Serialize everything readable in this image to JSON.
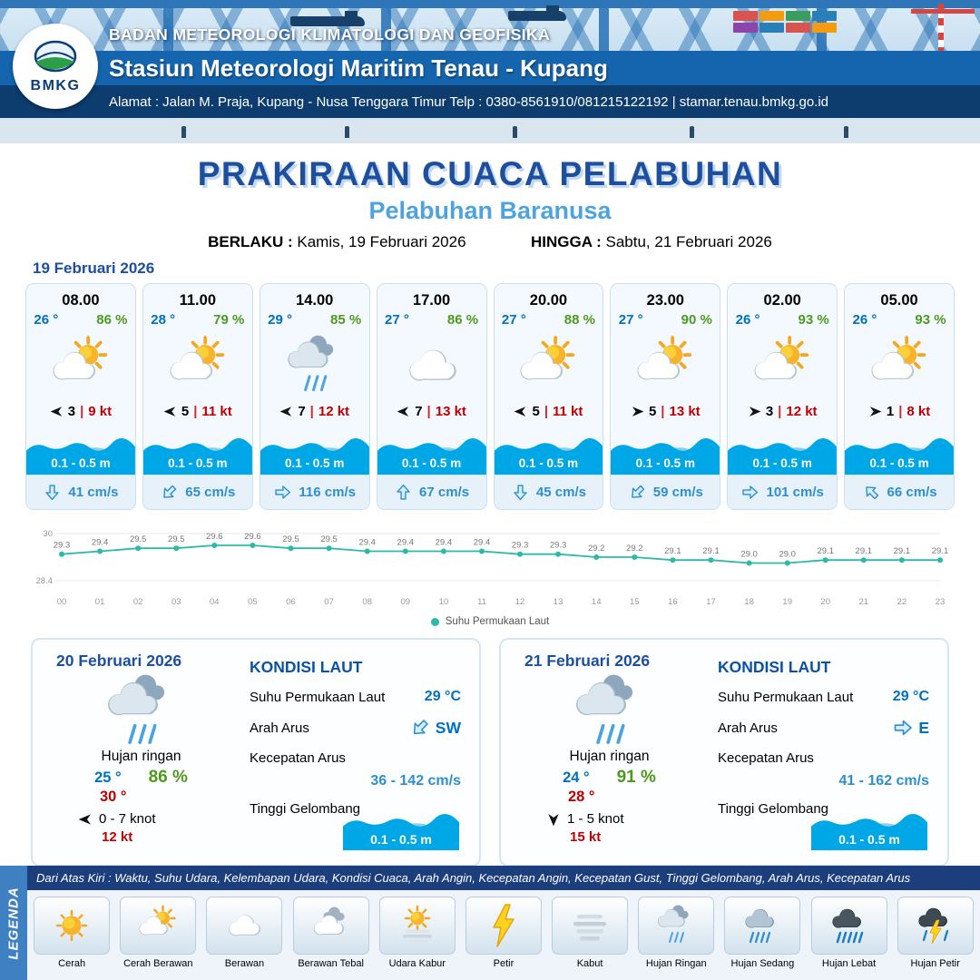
{
  "header": {
    "org_line": "BADAN METEOROLOGI KLIMATOLOGI DAN GEOFISIKA",
    "station_line": "Stasiun Meteorologi Maritim Tenau - Kupang",
    "address_line": "Alamat : Jalan M. Praja, Kupang - Nusa Tenggara Timur Telp : 0380-8561910/081215122192  | stamar.tenau.bmkg.go.id",
    "logo_text": "BMKG"
  },
  "title": {
    "main": "PRAKIRAAN CUACA PELABUHAN",
    "subtitle": "Pelabuhan Baranusa",
    "berlaku_label": "BERLAKU :",
    "berlaku_value": "Kamis, 19 Februari 2026",
    "hingga_label": "HINGGA :",
    "hingga_value": "Sabtu, 21 Februari 2026"
  },
  "day1": {
    "date": "19 Februari 2026",
    "cards": [
      {
        "time": "08.00",
        "temp": "26 °",
        "rh": "86 %",
        "icon": "cerah-berawan",
        "wind_speed": "3",
        "wind_kt": "9 kt",
        "wind_rot": 180,
        "wave": "0.1 - 0.5 m",
        "current": "41 cm/s",
        "current_rot": 90
      },
      {
        "time": "11.00",
        "temp": "28 °",
        "rh": "79 %",
        "icon": "cerah-berawan",
        "wind_speed": "5",
        "wind_kt": "11 kt",
        "wind_rot": 180,
        "wave": "0.1 - 0.5 m",
        "current": "65 cm/s",
        "current_rot": 135
      },
      {
        "time": "14.00",
        "temp": "29 °",
        "rh": "85 %",
        "icon": "hujan-ringan",
        "wind_speed": "7",
        "wind_kt": "12 kt",
        "wind_rot": 180,
        "wave": "0.1 - 0.5 m",
        "current": "116 cm/s",
        "current_rot": 0
      },
      {
        "time": "17.00",
        "temp": "27 °",
        "rh": "86 %",
        "icon": "berawan",
        "wind_speed": "7",
        "wind_kt": "13 kt",
        "wind_rot": 180,
        "wave": "0.1 - 0.5 m",
        "current": "67 cm/s",
        "current_rot": 270
      },
      {
        "time": "20.00",
        "temp": "27 °",
        "rh": "88 %",
        "icon": "cerah-berawan",
        "wind_speed": "5",
        "wind_kt": "11 kt",
        "wind_rot": 180,
        "wave": "0.1 - 0.5 m",
        "current": "45 cm/s",
        "current_rot": 90
      },
      {
        "time": "23.00",
        "temp": "27 °",
        "rh": "90 %",
        "icon": "cerah-berawan",
        "wind_speed": "5",
        "wind_kt": "13 kt",
        "wind_rot": 0,
        "wave": "0.1 - 0.5 m",
        "current": "59 cm/s",
        "current_rot": 135
      },
      {
        "time": "02.00",
        "temp": "26 °",
        "rh": "93 %",
        "icon": "cerah-berawan",
        "wind_speed": "3",
        "wind_kt": "12 kt",
        "wind_rot": 0,
        "wave": "0.1 - 0.5 m",
        "current": "101 cm/s",
        "current_rot": 0
      },
      {
        "time": "05.00",
        "temp": "26 °",
        "rh": "93 %",
        "icon": "cerah-berawan",
        "wind_speed": "1",
        "wind_kt": "8 kt",
        "wind_rot": 0,
        "wave": "0.1 - 0.5 m",
        "current": "66 cm/s",
        "current_rot": 225
      }
    ]
  },
  "chart_data": {
    "type": "line",
    "legend": "Suhu Permukaan Laut",
    "x": [
      "00",
      "01",
      "02",
      "03",
      "04",
      "05",
      "06",
      "07",
      "08",
      "09",
      "10",
      "11",
      "12",
      "13",
      "14",
      "15",
      "16",
      "17",
      "18",
      "19",
      "20",
      "21",
      "22",
      "23"
    ],
    "values": [
      29.3,
      29.4,
      29.5,
      29.5,
      29.6,
      29.6,
      29.5,
      29.5,
      29.4,
      29.4,
      29.4,
      29.4,
      29.3,
      29.3,
      29.2,
      29.2,
      29.1,
      29.1,
      29.0,
      29.0,
      29.1,
      29.1,
      29.1,
      29.1
    ],
    "ylim": [
      28.4,
      30
    ],
    "line_color": "#2cb9a6",
    "grid": true,
    "legend_position": "bottom"
  },
  "days": [
    {
      "date": "20 Februari 2026",
      "icon": "hujan-ringan",
      "weather": "Hujan ringan",
      "temp_min": "25 °",
      "rh": "86 %",
      "temp_max": "30 °",
      "wind_range": "0 - 7 knot",
      "gust": "12 kt",
      "wind_rot": 180,
      "sea": {
        "heading": "KONDISI LAUT",
        "sst_label": "Suhu Permukaan Laut",
        "sst": "29 °C",
        "arus_label": "Arah Arus",
        "arus_dir": "SW",
        "arus_rot": 135,
        "kecepatan_label": "Kecepatan Arus",
        "kecepatan": "36 - 142 cm/s",
        "gel_label": "Tinggi Gelombang",
        "gel": "0.1 - 0.5 m"
      }
    },
    {
      "date": "21 Februari 2026",
      "icon": "hujan-ringan",
      "weather": "Hujan ringan",
      "temp_min": "24 °",
      "rh": "91 %",
      "temp_max": "28 °",
      "wind_range": "1 - 5 knot",
      "gust": "15 kt",
      "wind_rot": 90,
      "sea": {
        "heading": "KONDISI LAUT",
        "sst_label": "Suhu Permukaan Laut",
        "sst": "29 °C",
        "arus_label": "Arah Arus",
        "arus_dir": "E",
        "arus_rot": 0,
        "kecepatan_label": "Kecepatan Arus",
        "kecepatan": "41 - 162 cm/s",
        "gel_label": "Tinggi Gelombang",
        "gel": "0.1 - 0.5 m"
      }
    }
  ],
  "legend": {
    "vertical_label": "LEGENDA",
    "note": "Dari Atas Kiri : Waktu, Suhu Udara, Kelembapan Udara, Kondisi Cuaca, Arah Angin, Kecepatan Angin, Kecepatan Gust, Tinggi Gelombang, Arah Arus, Kecepatan Arus",
    "items": [
      {
        "label": "Cerah",
        "icon": "cerah"
      },
      {
        "label": "Cerah Berawan",
        "icon": "cerah-berawan"
      },
      {
        "label": "Berawan",
        "icon": "berawan"
      },
      {
        "label": "Berawan Tebal",
        "icon": "berawan-tebal"
      },
      {
        "label": "Udara Kabur",
        "icon": "udara-kabur"
      },
      {
        "label": "Petir",
        "icon": "petir"
      },
      {
        "label": "Kabut",
        "icon": "kabut"
      },
      {
        "label": "Hujan Ringan",
        "icon": "hujan-ringan"
      },
      {
        "label": "Hujan Sedang",
        "icon": "hujan-sedang"
      },
      {
        "label": "Hujan Lebat",
        "icon": "hujan-lebat"
      },
      {
        "label": "Hujan Petir",
        "icon": "hujan-petir"
      }
    ]
  },
  "colors": {
    "accent_blue": "#0070c0",
    "humidity_green": "#4e9a1e",
    "wind_red": "#c00000",
    "wave_blue": "#00a7e6",
    "title_blue": "#1d4f9e",
    "subtitle_blue": "#4da3e0",
    "sst_teal": "#2cb9a6"
  }
}
